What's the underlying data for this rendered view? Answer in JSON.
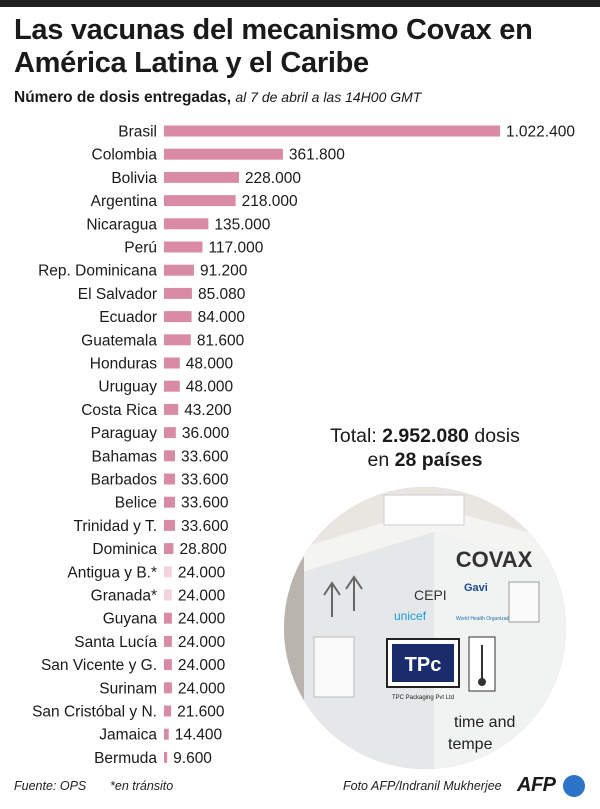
{
  "title": "Las vacunas del mecanismo Covax en América Latina y el Caribe",
  "subtitle": {
    "main": "Número de dosis entregadas,",
    "date": "al 7 de abril a las 14H00 GMT"
  },
  "total": {
    "prefix": "Total:",
    "doses": "2.952.080",
    "doses_suffix": "dosis",
    "in": "en",
    "countries": "28 países"
  },
  "footer": {
    "source": "Fuente: OPS",
    "note": "*en tránsito",
    "photo_credit": "Foto AFP/Indranil Mukherjee",
    "logo_text": "AFP"
  },
  "photo": {
    "box_text": "COVAX",
    "cepi": "CEPI",
    "gavi": "Gavi",
    "unicef": "unicef",
    "who": "World Health Organization",
    "company": "TPC Packaging Pvt Ltd",
    "tpc": "TPc",
    "side_text_1": "time and",
    "side_text_2": "tempe"
  },
  "colors": {
    "bar_delivered": "#d98ba6",
    "bar_in_transit": "#f2d3de",
    "text": "#1a1a1a",
    "logo_blue": "#2a73c9"
  },
  "chart_data": {
    "type": "bar",
    "orientation": "horizontal",
    "title": "Las vacunas del mecanismo Covax en América Latina y el Caribe",
    "ylabel": "",
    "xlabel": "",
    "categories": [
      "Brasil",
      "Colombia",
      "Bolivia",
      "Argentina",
      "Nicaragua",
      "Perú",
      "Rep. Dominicana",
      "El Salvador",
      "Ecuador",
      "Guatemala",
      "Honduras",
      "Uruguay",
      "Costa Rica",
      "Paraguay",
      "Bahamas",
      "Barbados",
      "Belice",
      "Trinidad y T.",
      "Dominica",
      "Antigua y B.*",
      "Granada*",
      "Guyana",
      "Santa Lucía",
      "San Vicente y G.",
      "Surinam",
      "San Cristóbal y N.",
      "Jamaica",
      "Bermuda"
    ],
    "values": [
      1022400,
      361800,
      228000,
      218000,
      135000,
      117000,
      91200,
      85080,
      84000,
      81600,
      48000,
      48000,
      43200,
      36000,
      33600,
      33600,
      33600,
      33600,
      28800,
      24000,
      24000,
      24000,
      24000,
      24000,
      24000,
      21600,
      14400,
      9600
    ],
    "value_labels": [
      "1.022.400",
      "361.800",
      "228.000",
      "218.000",
      "135.000",
      "117.000",
      "91.200",
      "85.080",
      "84.000",
      "81.600",
      "48.000",
      "48.000",
      "43.200",
      "36.000",
      "33.600",
      "33.600",
      "33.600",
      "33.600",
      "28.800",
      "24.000",
      "24.000",
      "24.000",
      "24.000",
      "24.000",
      "24.000",
      "21.600",
      "14.400",
      "9.600"
    ],
    "in_transit": [
      false,
      false,
      false,
      false,
      false,
      false,
      false,
      false,
      false,
      false,
      false,
      false,
      false,
      false,
      false,
      false,
      false,
      false,
      false,
      true,
      true,
      false,
      false,
      false,
      false,
      false,
      false,
      false
    ],
    "xlim": [
      0,
      1022400
    ],
    "grid": false,
    "legend": "none"
  }
}
